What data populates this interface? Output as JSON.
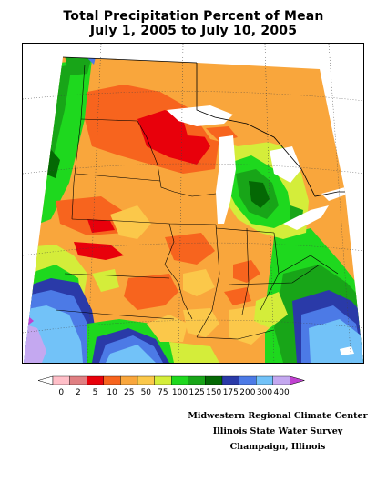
{
  "title_line1": "Total Precipitation Percent of Mean",
  "title_line2": "July 1, 2005 to July 10, 2005",
  "legend": {
    "colors": [
      "#ffffff",
      "#ffbfc8",
      "#e07f82",
      "#e8000b",
      "#f7641e",
      "#f9a63c",
      "#fbc84a",
      "#d4ed3a",
      "#1ed81e",
      "#18a518",
      "#046804",
      "#2a3aa8",
      "#4c7ae6",
      "#72c2f8",
      "#c4a8f0",
      "#c040d0"
    ],
    "labels": [
      "0",
      "2",
      "5",
      "10",
      "25",
      "50",
      "75",
      "100",
      "125",
      "150",
      "175",
      "200",
      "300",
      "400"
    ]
  },
  "credits": [
    "Midwestern Regional Climate Center",
    "Illinois State Water Survey",
    "Champaign, Illinois"
  ]
}
